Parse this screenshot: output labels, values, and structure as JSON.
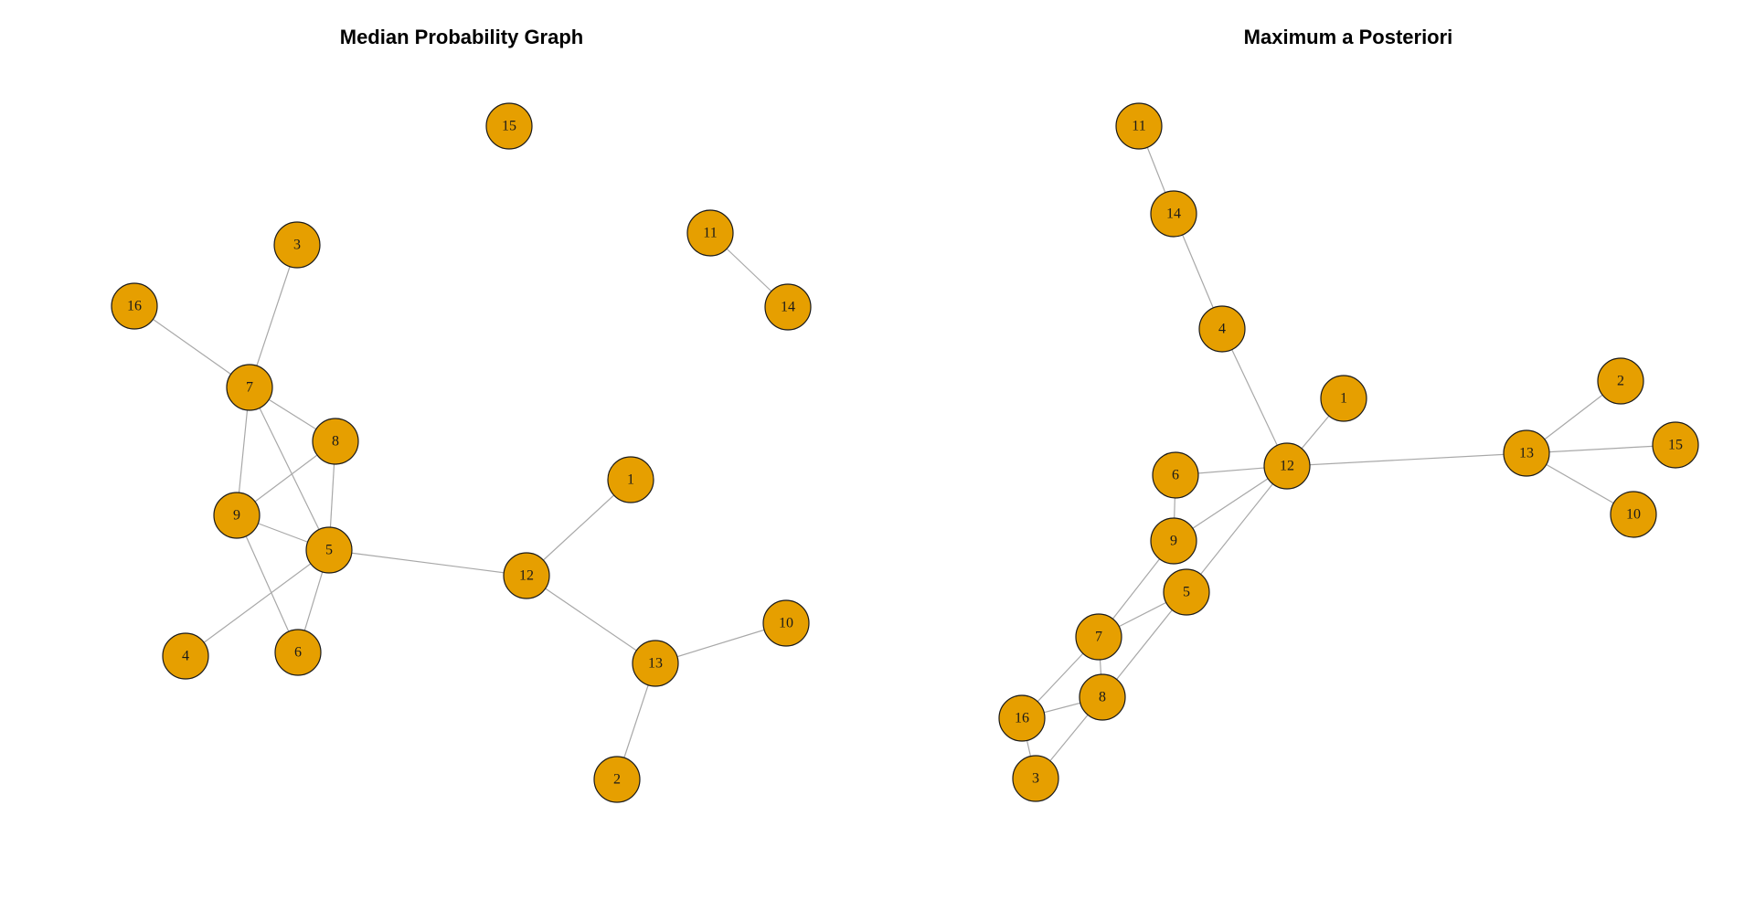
{
  "colors": {
    "background": "#ffffff",
    "node_fill": "#E69F00",
    "node_stroke": "#1a1a1a",
    "edge": "#a8a8a8"
  },
  "panels": [
    {
      "title": "Median Probability Graph",
      "nodes": [
        "1",
        "2",
        "3",
        "4",
        "5",
        "6",
        "7",
        "8",
        "9",
        "10",
        "11",
        "12",
        "13",
        "14",
        "15",
        "16"
      ],
      "edges": [
        [
          "3",
          "7"
        ],
        [
          "16",
          "7"
        ],
        [
          "7",
          "8"
        ],
        [
          "7",
          "9"
        ],
        [
          "7",
          "5"
        ],
        [
          "8",
          "9"
        ],
        [
          "8",
          "5"
        ],
        [
          "9",
          "5"
        ],
        [
          "9",
          "6"
        ],
        [
          "5",
          "6"
        ],
        [
          "5",
          "4"
        ],
        [
          "5",
          "12"
        ],
        [
          "12",
          "1"
        ],
        [
          "12",
          "13"
        ],
        [
          "13",
          "10"
        ],
        [
          "13",
          "2"
        ],
        [
          "11",
          "14"
        ]
      ]
    },
    {
      "title": "Maximum a Posteriori",
      "nodes": [
        "1",
        "2",
        "3",
        "4",
        "5",
        "6",
        "7",
        "8",
        "9",
        "10",
        "11",
        "12",
        "13",
        "14",
        "15",
        "16"
      ],
      "edges": [
        [
          "11",
          "14"
        ],
        [
          "14",
          "4"
        ],
        [
          "4",
          "12"
        ],
        [
          "1",
          "12"
        ],
        [
          "6",
          "12"
        ],
        [
          "6",
          "9"
        ],
        [
          "9",
          "12"
        ],
        [
          "12",
          "5"
        ],
        [
          "12",
          "13"
        ],
        [
          "13",
          "2"
        ],
        [
          "13",
          "15"
        ],
        [
          "13",
          "10"
        ],
        [
          "9",
          "7"
        ],
        [
          "7",
          "5"
        ],
        [
          "5",
          "8"
        ],
        [
          "7",
          "8"
        ],
        [
          "7",
          "16"
        ],
        [
          "16",
          "8"
        ],
        [
          "16",
          "3"
        ],
        [
          "3",
          "8"
        ]
      ]
    }
  ]
}
